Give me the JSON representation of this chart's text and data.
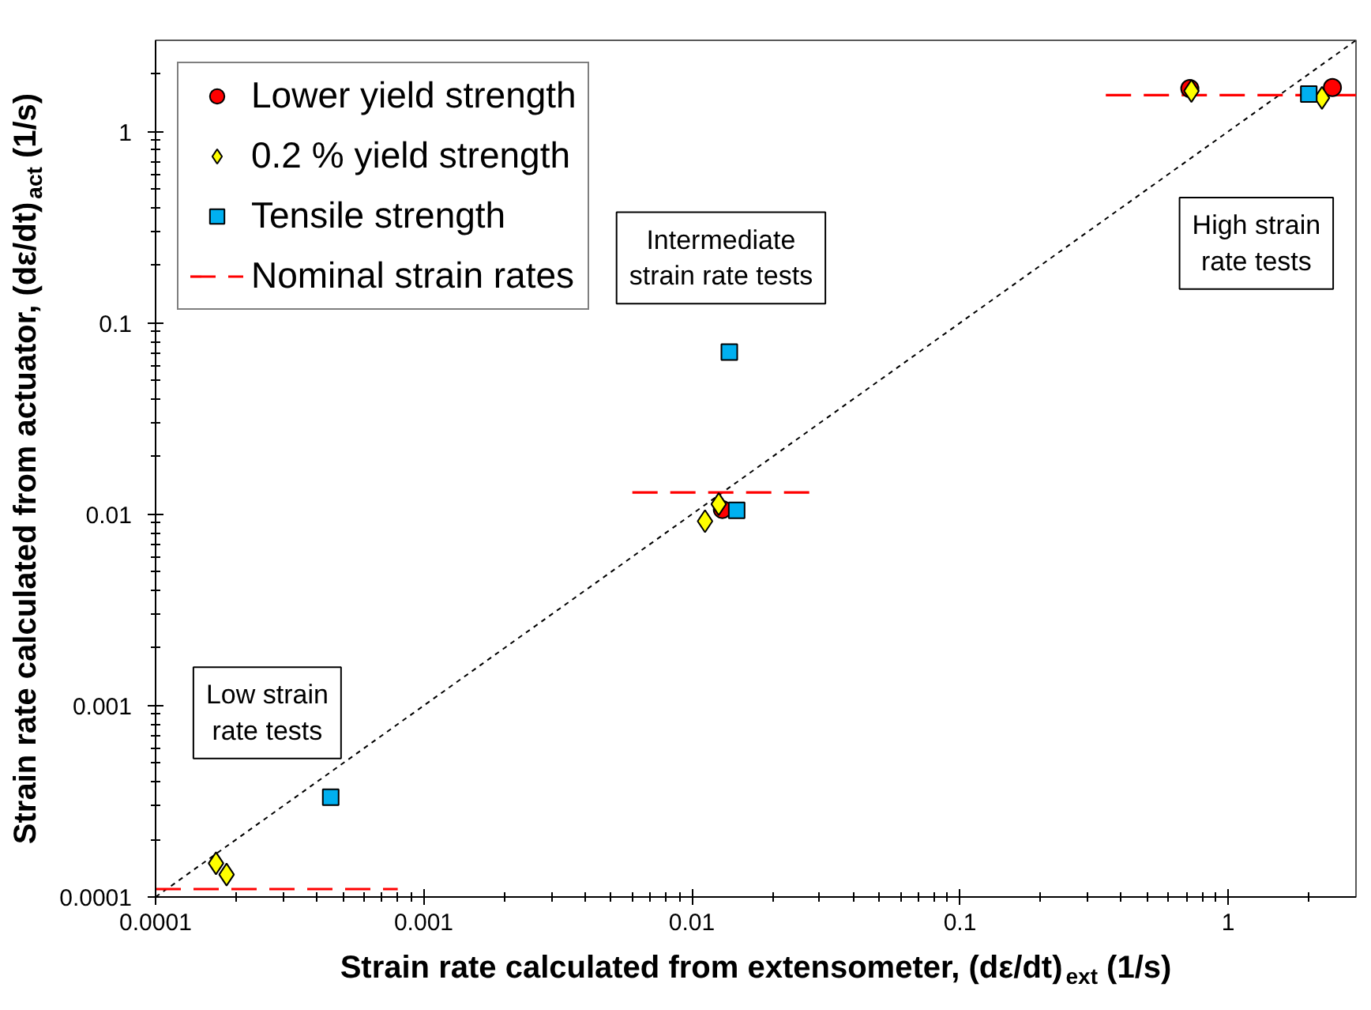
{
  "chart_data": {
    "type": "scatter",
    "log": "xy",
    "grid": false,
    "legend": "top left",
    "xlabel": "Strain rate calculated from extensometer, (dε/dt)$_{ext}$ (1/s)",
    "ylabel": "Strain rate calculated from actuator, (dε/dt)$_{act}$ (1/s)",
    "xlim": [
      0.0001,
      3
    ],
    "ylim": [
      0.0001,
      3
    ],
    "xticks": [
      0.0001,
      {
        "value": 0.0002,
        "label": null
      },
      {
        "value": 0.0003,
        "label": null
      },
      {
        "value": 0.0004,
        "label": null
      },
      {
        "value": 0.0005,
        "label": null
      },
      {
        "value": 0.0006,
        "label": null
      },
      {
        "value": 0.0007,
        "label": null
      },
      {
        "value": 0.0008,
        "label": null
      },
      {
        "value": 0.0009,
        "label": null
      },
      0.001,
      {
        "value": 0.002,
        "label": null
      },
      {
        "value": 0.003,
        "label": null
      },
      {
        "value": 0.004,
        "label": null
      },
      {
        "value": 0.005,
        "label": null
      },
      {
        "value": 0.006,
        "label": null
      },
      {
        "value": 0.007,
        "label": null
      },
      {
        "value": 0.008,
        "label": null
      },
      {
        "value": 0.009,
        "label": null
      },
      0.01,
      {
        "value": 0.02,
        "label": null
      },
      {
        "value": 0.03,
        "label": null
      },
      {
        "value": 0.04,
        "label": null
      },
      {
        "value": 0.05,
        "label": null
      },
      {
        "value": 0.06,
        "label": null
      },
      {
        "value": 0.07,
        "label": null
      },
      {
        "value": 0.08,
        "label": null
      },
      {
        "value": 0.09,
        "label": null
      },
      0.1,
      {
        "value": 0.2,
        "label": null
      },
      {
        "value": 0.3,
        "label": null
      },
      {
        "value": 0.4,
        "label": null
      },
      {
        "value": 0.5,
        "label": null
      },
      {
        "value": 0.6,
        "label": null
      },
      {
        "value": 0.7,
        "label": null
      },
      {
        "value": 0.8,
        "label": null
      },
      {
        "value": 0.9,
        "label": null
      },
      1,
      {
        "value": 2,
        "label": null
      }
    ],
    "yticks": [
      0.0001,
      {
        "value": 0.0002,
        "label": null
      },
      {
        "value": 0.0003,
        "label": null
      },
      {
        "value": 0.0004,
        "label": null
      },
      {
        "value": 0.0005,
        "label": null
      },
      {
        "value": 0.0006,
        "label": null
      },
      {
        "value": 0.0007,
        "label": null
      },
      {
        "value": 0.0008,
        "label": null
      },
      {
        "value": 0.0009,
        "label": null
      },
      0.001,
      {
        "value": 0.002,
        "label": null
      },
      {
        "value": 0.003,
        "label": null
      },
      {
        "value": 0.004,
        "label": null
      },
      {
        "value": 0.005,
        "label": null
      },
      {
        "value": 0.006,
        "label": null
      },
      {
        "value": 0.007,
        "label": null
      },
      {
        "value": 0.008,
        "label": null
      },
      {
        "value": 0.009,
        "label": null
      },
      0.01,
      {
        "value": 0.02,
        "label": null
      },
      {
        "value": 0.03,
        "label": null
      },
      {
        "value": 0.04,
        "label": null
      },
      {
        "value": 0.05,
        "label": null
      },
      {
        "value": 0.06,
        "label": null
      },
      {
        "value": 0.07,
        "label": null
      },
      {
        "value": 0.08,
        "label": null
      },
      {
        "value": 0.09,
        "label": null
      },
      0.1,
      {
        "value": 0.2,
        "label": null
      },
      {
        "value": 0.3,
        "label": null
      },
      {
        "value": 0.4,
        "label": null
      },
      {
        "value": 0.5,
        "label": null
      },
      {
        "value": 0.6,
        "label": null
      },
      {
        "value": 0.7,
        "label": null
      },
      {
        "value": 0.8,
        "label": null
      },
      {
        "value": 0.9,
        "label": null
      },
      1,
      {
        "value": 2,
        "label": null
      }
    ],
    "series": [
      {
        "type": "line",
        "line_style": "dotted",
        "color": "#000000",
        "x": [
          0.0001,
          3
        ],
        "values": [
          0.0001,
          3
        ]
      },
      {
        "name": "Lower yield strength",
        "marker": "circle",
        "color": "#ff0000",
        "x": [
          0.013,
          0.72,
          2.45
        ],
        "values": [
          0.0106,
          1.68,
          1.7
        ]
      },
      {
        "name": "0.2 % yield strength",
        "marker": "diamond",
        "color": "#ffff00",
        "x": [
          0.000168,
          0.000184,
          0.0112,
          0.0126,
          0.73,
          2.24
        ],
        "values": [
          0.00015,
          0.000131,
          0.0092,
          0.0113,
          1.63,
          1.5
        ]
      },
      {
        "name": "Tensile strength",
        "marker": "square",
        "color": "#00b0f0",
        "x": [
          0.00045,
          0.0138,
          0.0147,
          2.0
        ],
        "values": [
          0.000332,
          0.0705,
          0.0105,
          1.57
        ]
      },
      {
        "name": "Nominal strain rates",
        "type": "line",
        "line_style": "dashed",
        "color": "#ff0000",
        "x": [
          0.0001,
          0.0008,
          null,
          0.006,
          0.03,
          null,
          0.35,
          3
        ],
        "values": [
          0.00011,
          0.00011,
          null,
          0.013,
          0.013,
          null,
          1.55,
          1.55
        ]
      }
    ],
    "annotations": [
      "Low strain\nrate tests",
      "Intermediate\nstrain rate tests",
      "High strain\nrate tests"
    ]
  }
}
